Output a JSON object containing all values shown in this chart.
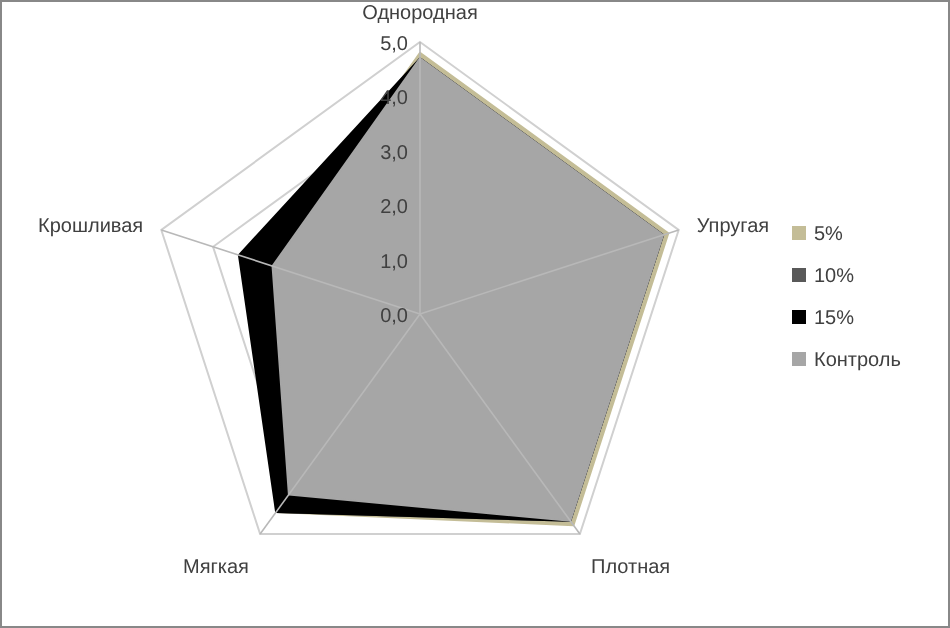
{
  "chart_data": {
    "type": "radar",
    "categories": [
      "Однородная",
      "Упругая",
      "Плотная",
      "Мягкая",
      "Крошливая"
    ],
    "ylim": [
      0,
      5
    ],
    "yticks": [
      {
        "value": 0,
        "label": "0,0"
      },
      {
        "value": 1,
        "label": "1,0"
      },
      {
        "value": 2,
        "label": "2,0"
      },
      {
        "value": 3,
        "label": "3,0"
      },
      {
        "value": 4,
        "label": "4,0"
      },
      {
        "value": 5,
        "label": "5,0"
      }
    ],
    "grid": true,
    "legend": "right",
    "series": [
      {
        "name": "5%",
        "color": "#c4bd97",
        "values": [
          4.8,
          4.8,
          4.8,
          4.5,
          2.9
        ]
      },
      {
        "name": "10%",
        "color": "#595959",
        "values": [
          4.7,
          4.7,
          4.7,
          4.5,
          3.0
        ]
      },
      {
        "name": "15%",
        "color": "#000000",
        "values": [
          4.7,
          4.7,
          4.7,
          4.5,
          3.5
        ]
      },
      {
        "name": "Контроль",
        "color": "#a6a6a6",
        "values": [
          4.7,
          4.7,
          4.7,
          4.1,
          2.85
        ]
      }
    ]
  }
}
